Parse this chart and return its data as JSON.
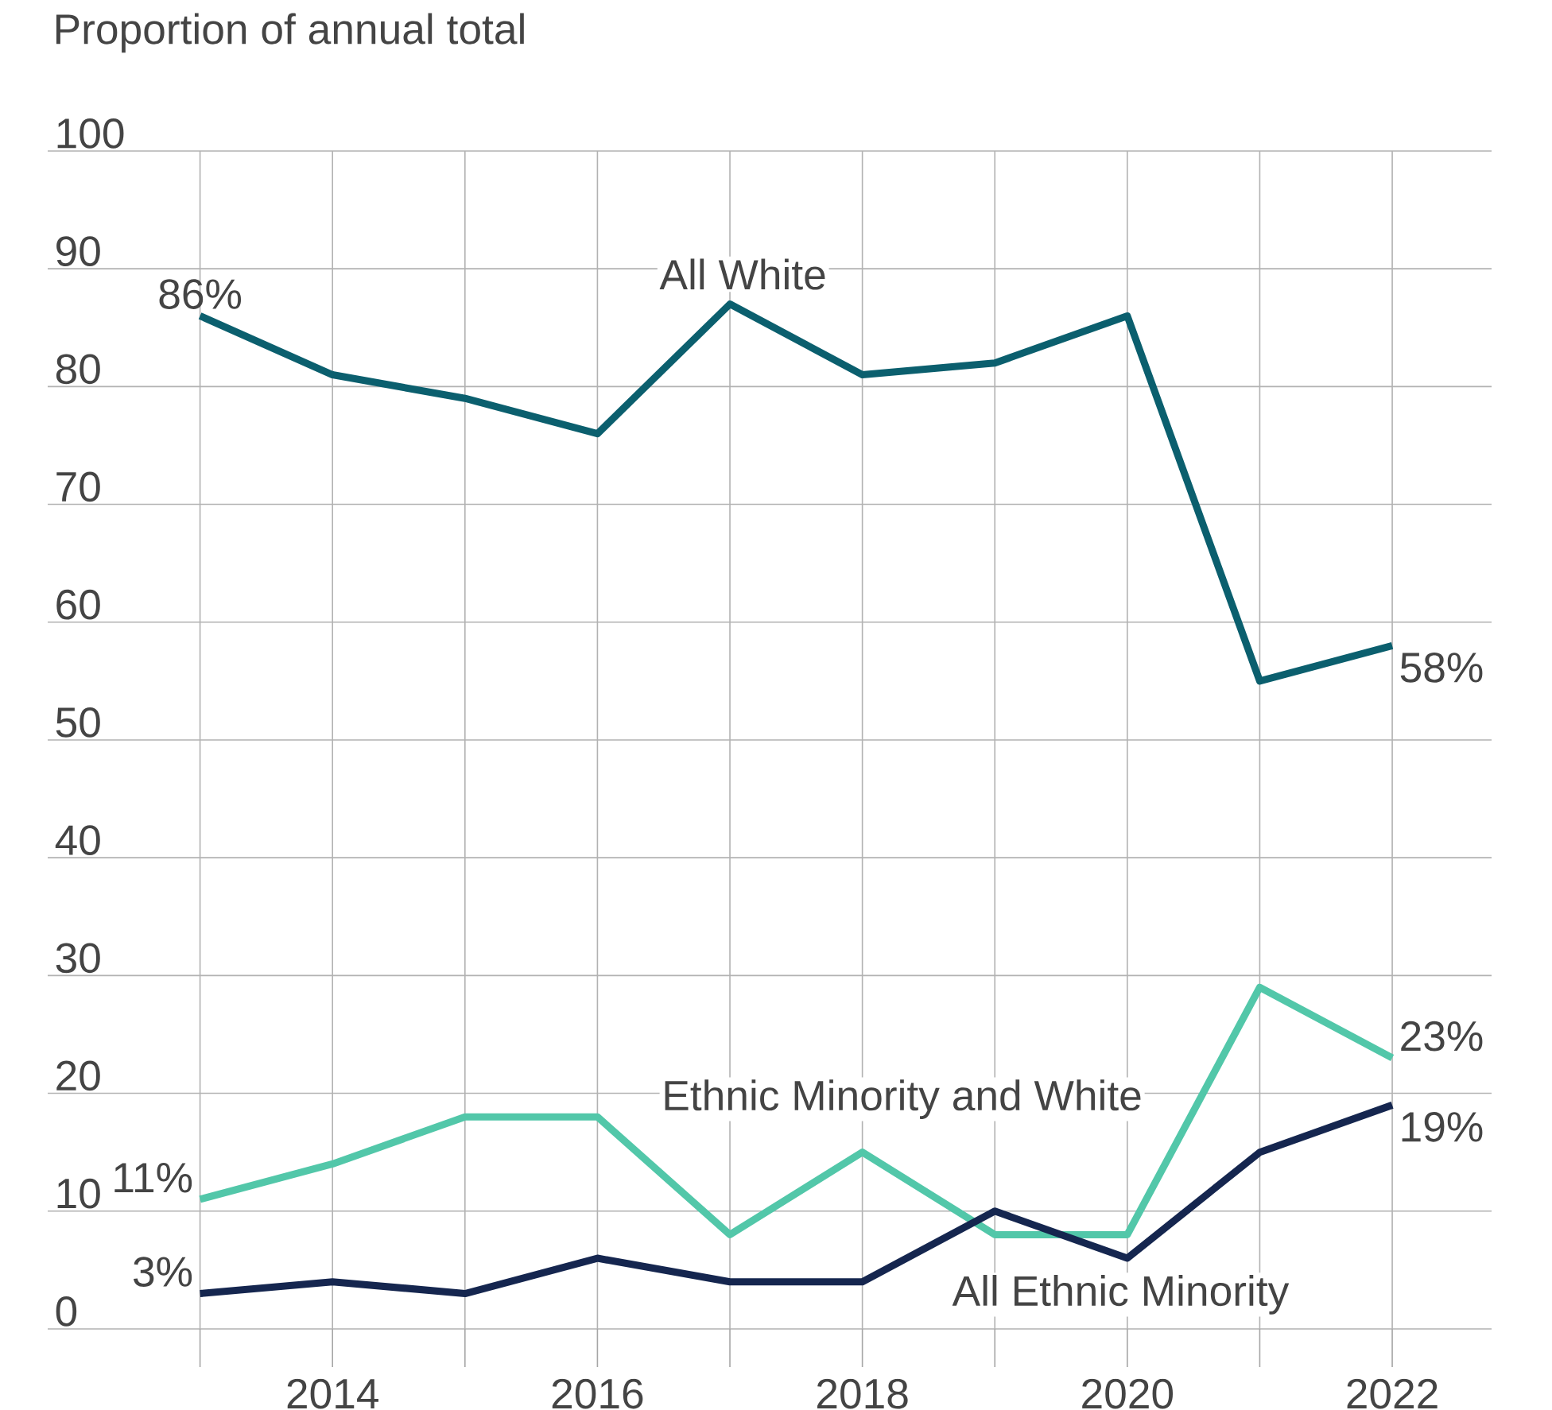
{
  "chart_data": {
    "type": "line",
    "ylabel": "Proportion of annual total",
    "x": [
      2013,
      2014,
      2015,
      2016,
      2017,
      2018,
      2019,
      2020,
      2021,
      2022
    ],
    "series": [
      {
        "name": "All White",
        "color": "#0b5f6e",
        "values": [
          86,
          81,
          79,
          76,
          87,
          81,
          82,
          86,
          55,
          58
        ],
        "value_labels": [
          "86%",
          null,
          null,
          null,
          null,
          null,
          null,
          null,
          null,
          "58%"
        ]
      },
      {
        "name": "Ethnic Minority and White",
        "color": "#52c7a9",
        "values": [
          11,
          14,
          18,
          18,
          8,
          15,
          8,
          8,
          29,
          23
        ],
        "value_labels": [
          "11%",
          null,
          null,
          null,
          null,
          null,
          null,
          null,
          null,
          "23%"
        ]
      },
      {
        "name": "All Ethnic Minority",
        "color": "#15264f",
        "values": [
          3,
          4,
          3,
          6,
          4,
          4,
          10,
          6,
          15,
          19
        ],
        "value_labels": [
          "3%",
          null,
          null,
          null,
          null,
          null,
          null,
          null,
          null,
          "19%"
        ]
      }
    ],
    "xlim": [
      2011.85,
      2022.75
    ],
    "ylim": [
      0,
      100
    ],
    "xticks": [
      {
        "value": 2013,
        "label": null
      },
      2014,
      {
        "value": 2015,
        "label": null
      },
      2016,
      {
        "value": 2017,
        "label": null
      },
      2018,
      {
        "value": 2019,
        "label": null
      },
      2020,
      {
        "value": 2021,
        "label": null
      },
      2022
    ],
    "yticks": [
      0,
      10,
      20,
      30,
      40,
      50,
      60,
      70,
      80,
      90,
      100
    ],
    "grid": true,
    "marker": "none",
    "line_style": "solid"
  }
}
